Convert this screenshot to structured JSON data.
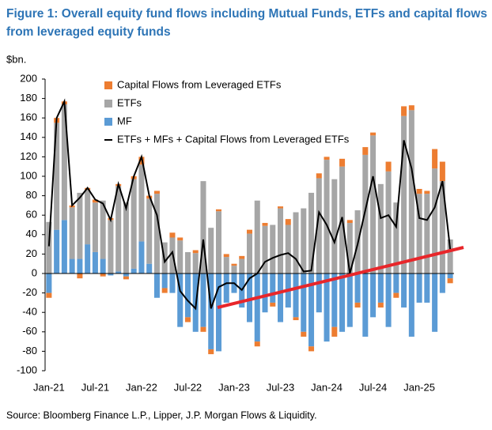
{
  "chart_data": {
    "type": "bar",
    "stacked": true,
    "title": "Figure 1: Overall equity fund flows including Mutual Funds, ETFs and capital flows from leveraged equity funds",
    "y_label": "$bn.",
    "source": "Source: Bloomberg Finance L.P., Lipper, J.P. Morgan Flows & Liquidity.",
    "categories": [
      "Jan-21",
      null,
      null,
      null,
      null,
      null,
      "Jul-21",
      null,
      null,
      null,
      null,
      null,
      "Jan-22",
      null,
      null,
      null,
      null,
      null,
      "Jul-22",
      null,
      null,
      null,
      null,
      null,
      "Jan-23",
      null,
      null,
      null,
      null,
      null,
      "Jul-23",
      null,
      null,
      null,
      null,
      null,
      "Jan-24",
      null,
      null,
      null,
      null,
      null,
      "Jul-24",
      null,
      null,
      null,
      null,
      null,
      "Jan-25",
      null,
      null,
      null,
      null
    ],
    "series": [
      {
        "name": "MF",
        "color": "#5b9bd5",
        "values": [
          -20,
          45,
          55,
          15,
          15,
          30,
          22,
          15,
          -2,
          2,
          -3,
          5,
          33,
          10,
          -25,
          -15,
          -20,
          -55,
          -45,
          -60,
          -55,
          -78,
          -80,
          -30,
          -20,
          -35,
          -50,
          -70,
          -40,
          -30,
          -50,
          -35,
          -45,
          -60,
          -75,
          -40,
          -70,
          -55,
          -60,
          -55,
          -30,
          -65,
          -45,
          -30,
          -55,
          -20,
          -35,
          -65,
          -30,
          -30,
          -60,
          -20,
          -5
        ]
      },
      {
        "name": "ETFs",
        "color": "#a6a6a6",
        "values": [
          53,
          110,
          119,
          53,
          68,
          56,
          51,
          60,
          55,
          88,
          73,
          92,
          79,
          67,
          82,
          32,
          37,
          34,
          22,
          21,
          95,
          47,
          64,
          17,
          8,
          15,
          41,
          75,
          49,
          50,
          67,
          50,
          63,
          67,
          83,
          98,
          117,
          97,
          110,
          52,
          65,
          122,
          142,
          92,
          105,
          73,
          162,
          168,
          82,
          82,
          108,
          95,
          35
        ]
      },
      {
        "name": "Capital Flows from Leveraged ETFs",
        "color": "#ed7d31",
        "values": [
          -5,
          5,
          3,
          2,
          -5,
          2,
          3,
          -3,
          2,
          2,
          -3,
          3,
          8,
          3,
          3,
          -5,
          5,
          3,
          -5,
          3,
          -5,
          -5,
          2,
          3,
          2,
          3,
          4,
          -5,
          3,
          -4,
          2,
          6,
          -3,
          -5,
          -5,
          5,
          3,
          -10,
          8,
          3,
          -5,
          8,
          3,
          -5,
          10,
          -5,
          10,
          5,
          5,
          3,
          20,
          20,
          -5
        ]
      },
      {
        "name": "ETFs + MFs + Capital Flows from Leveraged ETFs",
        "type": "line",
        "color": "#000000",
        "values": [
          28,
          160,
          177,
          70,
          78,
          88,
          76,
          72,
          55,
          92,
          67,
          100,
          120,
          80,
          60,
          12,
          22,
          -18,
          -28,
          -36,
          35,
          -36,
          -14,
          -10,
          -10,
          -17,
          -5,
          0,
          12,
          16,
          19,
          21,
          15,
          2,
          3,
          63,
          50,
          32,
          58,
          0,
          30,
          65,
          100,
          57,
          60,
          48,
          137,
          108,
          57,
          55,
          68,
          95,
          25
        ]
      }
    ],
    "ylim": [
      -100,
      200
    ],
    "yticks": [
      -100,
      -80,
      -60,
      -40,
      -20,
      0,
      20,
      40,
      60,
      80,
      100,
      120,
      140,
      160,
      180,
      200
    ],
    "grid": false
  }
}
